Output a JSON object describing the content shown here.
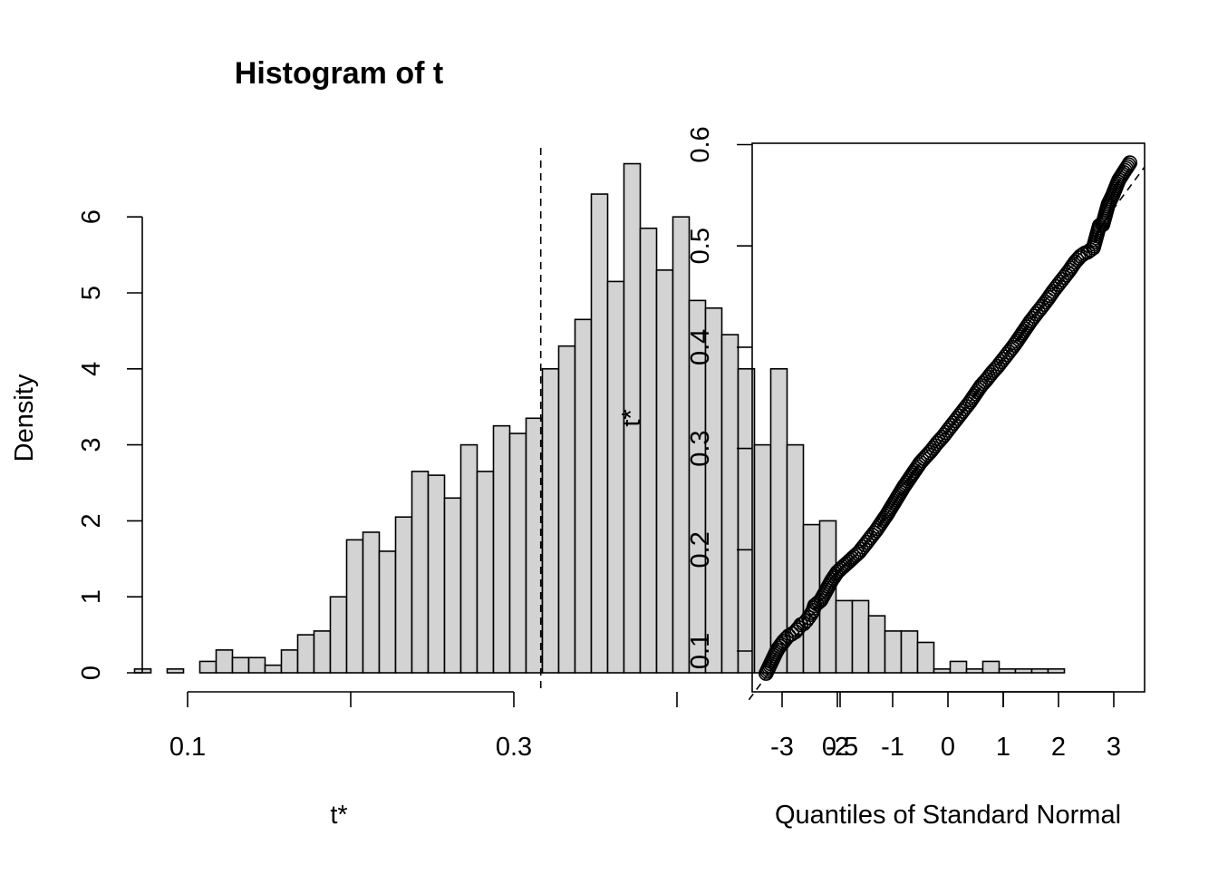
{
  "chart_data": [
    {
      "type": "histogram",
      "title": "Histogram of t",
      "xlabel": "t*",
      "ylabel": "Density",
      "x_ticks": [
        "0.1",
        "0.3",
        "0.5"
      ],
      "x_tick_values": [
        0.1,
        0.3,
        0.5
      ],
      "y_ticks": [
        "0",
        "1",
        "2",
        "3",
        "4",
        "5",
        "6"
      ],
      "y_tick_values": [
        0,
        1,
        2,
        3,
        4,
        5,
        6
      ],
      "xlim": [
        0.05,
        0.6
      ],
      "ylim": [
        0,
        6.7
      ],
      "bin_width": 0.01,
      "bin_start": 0.0475,
      "densities": [
        0,
        0,
        0.05,
        0,
        0.05,
        0,
        0.15,
        0.3,
        0.2,
        0.2,
        0.1,
        0.3,
        0.5,
        0.55,
        1.0,
        1.75,
        1.85,
        1.6,
        2.05,
        2.65,
        2.6,
        2.3,
        3.0,
        2.65,
        3.25,
        3.15,
        3.35,
        4.0,
        4.3,
        4.65,
        6.3,
        5.15,
        6.7,
        5.85,
        5.3,
        6.0,
        4.9,
        4.8,
        4.45,
        4.0,
        3.0,
        4.0,
        3.0,
        1.95,
        2.0,
        0.95,
        0.95,
        0.75,
        0.55,
        0.55,
        0.4,
        0.05,
        0.15,
        0.05,
        0.15,
        0.05,
        0.05,
        0.05,
        0.05,
        0,
        0,
        0
      ],
      "reference_line": {
        "x": 0.3165,
        "style": "dashed"
      }
    },
    {
      "type": "scatter",
      "subtype": "normal-qq",
      "xlabel": "Quantiles of Standard Normal",
      "ylabel": "t*",
      "x_ticks": [
        "-3",
        "-2",
        "-1",
        "0",
        "1",
        "2",
        "3"
      ],
      "x_tick_values": [
        -3,
        -2,
        -1,
        0,
        1,
        2,
        3
      ],
      "y_ticks": [
        "0.1",
        "0.2",
        "0.3",
        "0.4",
        "0.5",
        "0.6"
      ],
      "y_tick_values": [
        0.1,
        0.2,
        0.3,
        0.4,
        0.5,
        0.6
      ],
      "xlim": [
        -3.6,
        3.55
      ],
      "ylim": [
        0.055,
        0.6
      ],
      "n_points": 2000,
      "points": [
        [
          -3.29,
          0.078
        ],
        [
          -3.09,
          0.101
        ],
        [
          -2.97,
          0.11
        ],
        [
          -2.88,
          0.115
        ],
        [
          -2.82,
          0.117
        ],
        [
          -2.76,
          0.119
        ],
        [
          -2.7,
          0.123
        ],
        [
          -2.66,
          0.126
        ],
        [
          -2.61,
          0.127
        ],
        [
          -2.56,
          0.13
        ],
        [
          -2.52,
          0.133
        ],
        [
          -2.48,
          0.136
        ],
        [
          -2.44,
          0.14
        ],
        [
          -2.41,
          0.145
        ],
        [
          -2.3,
          0.15
        ],
        [
          -2.2,
          0.16
        ],
        [
          -2.1,
          0.17
        ],
        [
          -2.0,
          0.178
        ],
        [
          -1.9,
          0.183
        ],
        [
          -1.8,
          0.188
        ],
        [
          -1.7,
          0.193
        ],
        [
          -1.6,
          0.198
        ],
        [
          -1.5,
          0.205
        ],
        [
          -1.4,
          0.212
        ],
        [
          -1.3,
          0.219
        ],
        [
          -1.2,
          0.227
        ],
        [
          -1.1,
          0.235
        ],
        [
          -1.0,
          0.244
        ],
        [
          -0.9,
          0.253
        ],
        [
          -0.8,
          0.262
        ],
        [
          -0.7,
          0.27
        ],
        [
          -0.6,
          0.278
        ],
        [
          -0.5,
          0.286
        ],
        [
          -0.4,
          0.292
        ],
        [
          -0.3,
          0.298
        ],
        [
          -0.2,
          0.305
        ],
        [
          -0.1,
          0.311
        ],
        [
          0.0,
          0.318
        ],
        [
          0.1,
          0.325
        ],
        [
          0.2,
          0.332
        ],
        [
          0.3,
          0.339
        ],
        [
          0.4,
          0.346
        ],
        [
          0.5,
          0.354
        ],
        [
          0.6,
          0.362
        ],
        [
          0.7,
          0.368
        ],
        [
          0.8,
          0.375
        ],
        [
          0.9,
          0.381
        ],
        [
          1.0,
          0.388
        ],
        [
          1.1,
          0.395
        ],
        [
          1.2,
          0.402
        ],
        [
          1.3,
          0.41
        ],
        [
          1.4,
          0.418
        ],
        [
          1.5,
          0.426
        ],
        [
          1.6,
          0.433
        ],
        [
          1.7,
          0.44
        ],
        [
          1.8,
          0.447
        ],
        [
          1.9,
          0.455
        ],
        [
          2.0,
          0.462
        ],
        [
          2.1,
          0.469
        ],
        [
          2.2,
          0.476
        ],
        [
          2.3,
          0.484
        ],
        [
          2.4,
          0.49
        ],
        [
          2.48,
          0.493
        ],
        [
          2.53,
          0.494
        ],
        [
          2.58,
          0.496
        ],
        [
          2.63,
          0.498
        ],
        [
          2.68,
          0.508
        ],
        [
          2.74,
          0.52
        ],
        [
          2.8,
          0.521
        ],
        [
          2.9,
          0.541
        ],
        [
          2.98,
          0.55
        ],
        [
          3.09,
          0.565
        ],
        [
          3.29,
          0.582
        ]
      ],
      "reference_line": {
        "intercept": 0.3165,
        "slope": 0.0735,
        "style": "dashed"
      }
    }
  ]
}
